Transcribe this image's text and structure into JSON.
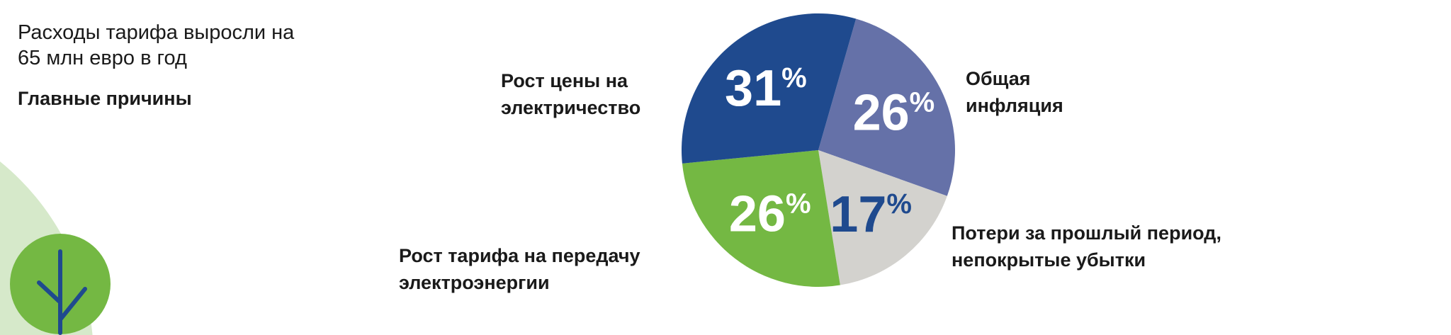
{
  "header": {
    "intro_line1": "Расходы тарифа выросли на",
    "intro_line2": "65 млн евро в год",
    "subtitle": "Главные причины"
  },
  "decoration": {
    "icon": "tree-icon",
    "colors": {
      "background_circle": "#d6e9ca",
      "tree_circle": "#74b843",
      "tree_branches": "#1f4a8e"
    }
  },
  "chart_data": {
    "type": "pie",
    "title": "",
    "start_angle_deg": 16,
    "direction": "clockwise",
    "slices": [
      {
        "label_lines": [
          "Общая",
          "инфляция"
        ],
        "value": 26,
        "value_label": "26",
        "color": "#6571a8",
        "text_color": "#ffffff"
      },
      {
        "label_lines": [
          "Потери за прошлый период,",
          "непокрытые убытки"
        ],
        "value": 17,
        "value_label": "17",
        "color": "#d3d2ce",
        "text_color": "#1f4a8e"
      },
      {
        "label_lines": [
          "Рост тарифа на передачу",
          "электроэнергии"
        ],
        "value": 26,
        "value_label": "26",
        "color": "#74b843",
        "text_color": "#ffffff"
      },
      {
        "label_lines": [
          "Рост цены на",
          "электричество"
        ],
        "value": 31,
        "value_label": "31",
        "color": "#1f4a8e",
        "text_color": "#ffffff"
      }
    ],
    "percent_sign": "%"
  }
}
